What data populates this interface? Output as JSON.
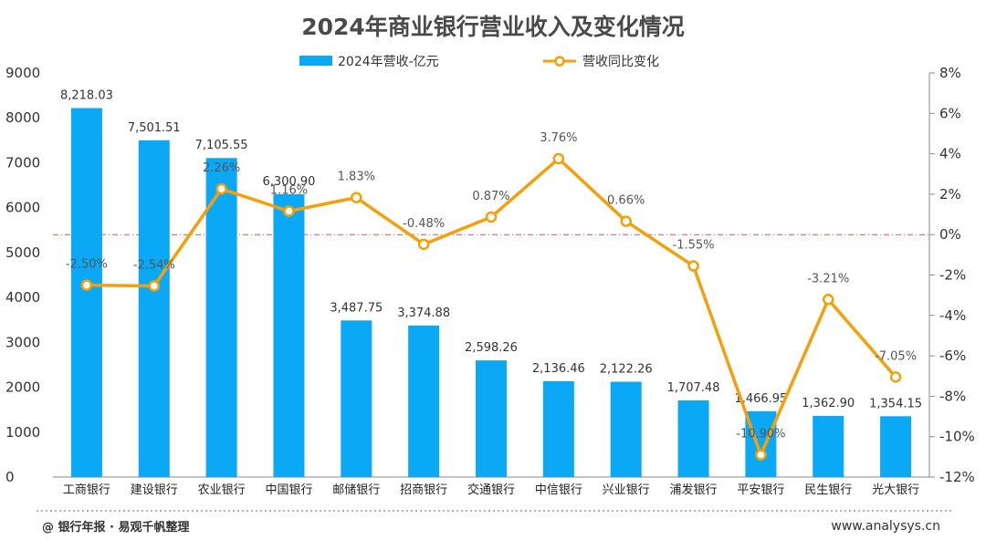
{
  "chart_data": {
    "type": "bar+line",
    "title": "2024年商业银行营业收入及变化情况",
    "categories": [
      "工商银行",
      "建设银行",
      "农业银行",
      "中国银行",
      "邮储银行",
      "招商银行",
      "交通银行",
      "中信银行",
      "兴业银行",
      "浦发银行",
      "平安银行",
      "民生银行",
      "光大银行"
    ],
    "series": [
      {
        "name": "2024年营收-亿元",
        "type": "bar",
        "axis": "left",
        "color": "#0aa8f5",
        "values": [
          8218.03,
          7501.51,
          7105.55,
          6300.9,
          3487.75,
          3374.88,
          2598.26,
          2136.46,
          2122.26,
          1707.48,
          1466.95,
          1362.9,
          1354.15
        ],
        "labels": [
          "8,218.03",
          "7,501.51",
          "7,105.55",
          "6,300.90",
          "3,487.75",
          "3,374.88",
          "2,598.26",
          "2,136.46",
          "2,122.26",
          "1,707.48",
          "1,466.95",
          "1,362.90",
          "1,354.15"
        ]
      },
      {
        "name": "营收同比变化",
        "type": "line",
        "axis": "right",
        "color": "#f5a00a",
        "values": [
          -2.5,
          -2.54,
          2.26,
          1.16,
          1.83,
          -0.48,
          0.87,
          3.76,
          0.66,
          -1.55,
          -10.9,
          -3.21,
          -7.05
        ],
        "labels": [
          "-2.50%",
          "-2.54%",
          "2.26%",
          "1.16%",
          "1.83%",
          "-0.48%",
          "0.87%",
          "3.76%",
          "0.66%",
          "-1.55%",
          "-10.90%",
          "-3.21%",
          "-7.05%"
        ]
      }
    ],
    "y_left": {
      "min": 0,
      "max": 9000,
      "ticks": [
        "0",
        "1000",
        "2000",
        "3000",
        "4000",
        "5000",
        "6000",
        "7000",
        "8000",
        "9000"
      ]
    },
    "y_right": {
      "min": -12,
      "max": 8,
      "ticks": [
        "-12%",
        "-10%",
        "-8%",
        "-6%",
        "-4%",
        "-2%",
        "0%",
        "2%",
        "4%",
        "6%",
        "8%"
      ],
      "zero_line_color": "#e05050"
    },
    "legend_position": "top-center",
    "grid": false
  },
  "footer": {
    "source": "@ 银行年报 · 易观千帆整理",
    "website": "www.analysys.cn"
  }
}
